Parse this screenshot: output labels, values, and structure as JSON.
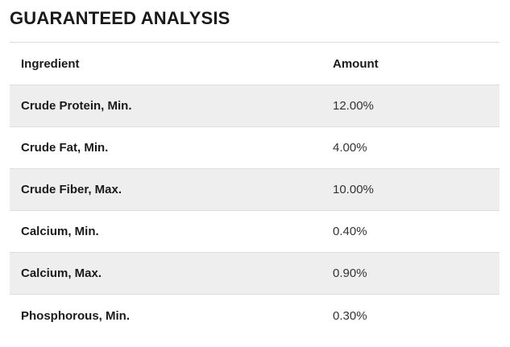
{
  "heading": "GUARANTEED ANALYSIS",
  "table": {
    "columns": [
      "Ingredient",
      "Amount"
    ],
    "rows": [
      {
        "ingredient": "Crude Protein, Min.",
        "amount": "12.00%"
      },
      {
        "ingredient": "Crude Fat, Min.",
        "amount": "4.00%"
      },
      {
        "ingredient": "Crude Fiber, Max.",
        "amount": "10.00%"
      },
      {
        "ingredient": "Calcium, Min.",
        "amount": "0.40%"
      },
      {
        "ingredient": "Calcium, Max.",
        "amount": "0.90%"
      },
      {
        "ingredient": "Phosphorous, Min.",
        "amount": "0.30%"
      }
    ]
  },
  "colors": {
    "shaded_row": "#eeeeee",
    "divider": "#dddddd",
    "text": "#1a1a1a"
  }
}
